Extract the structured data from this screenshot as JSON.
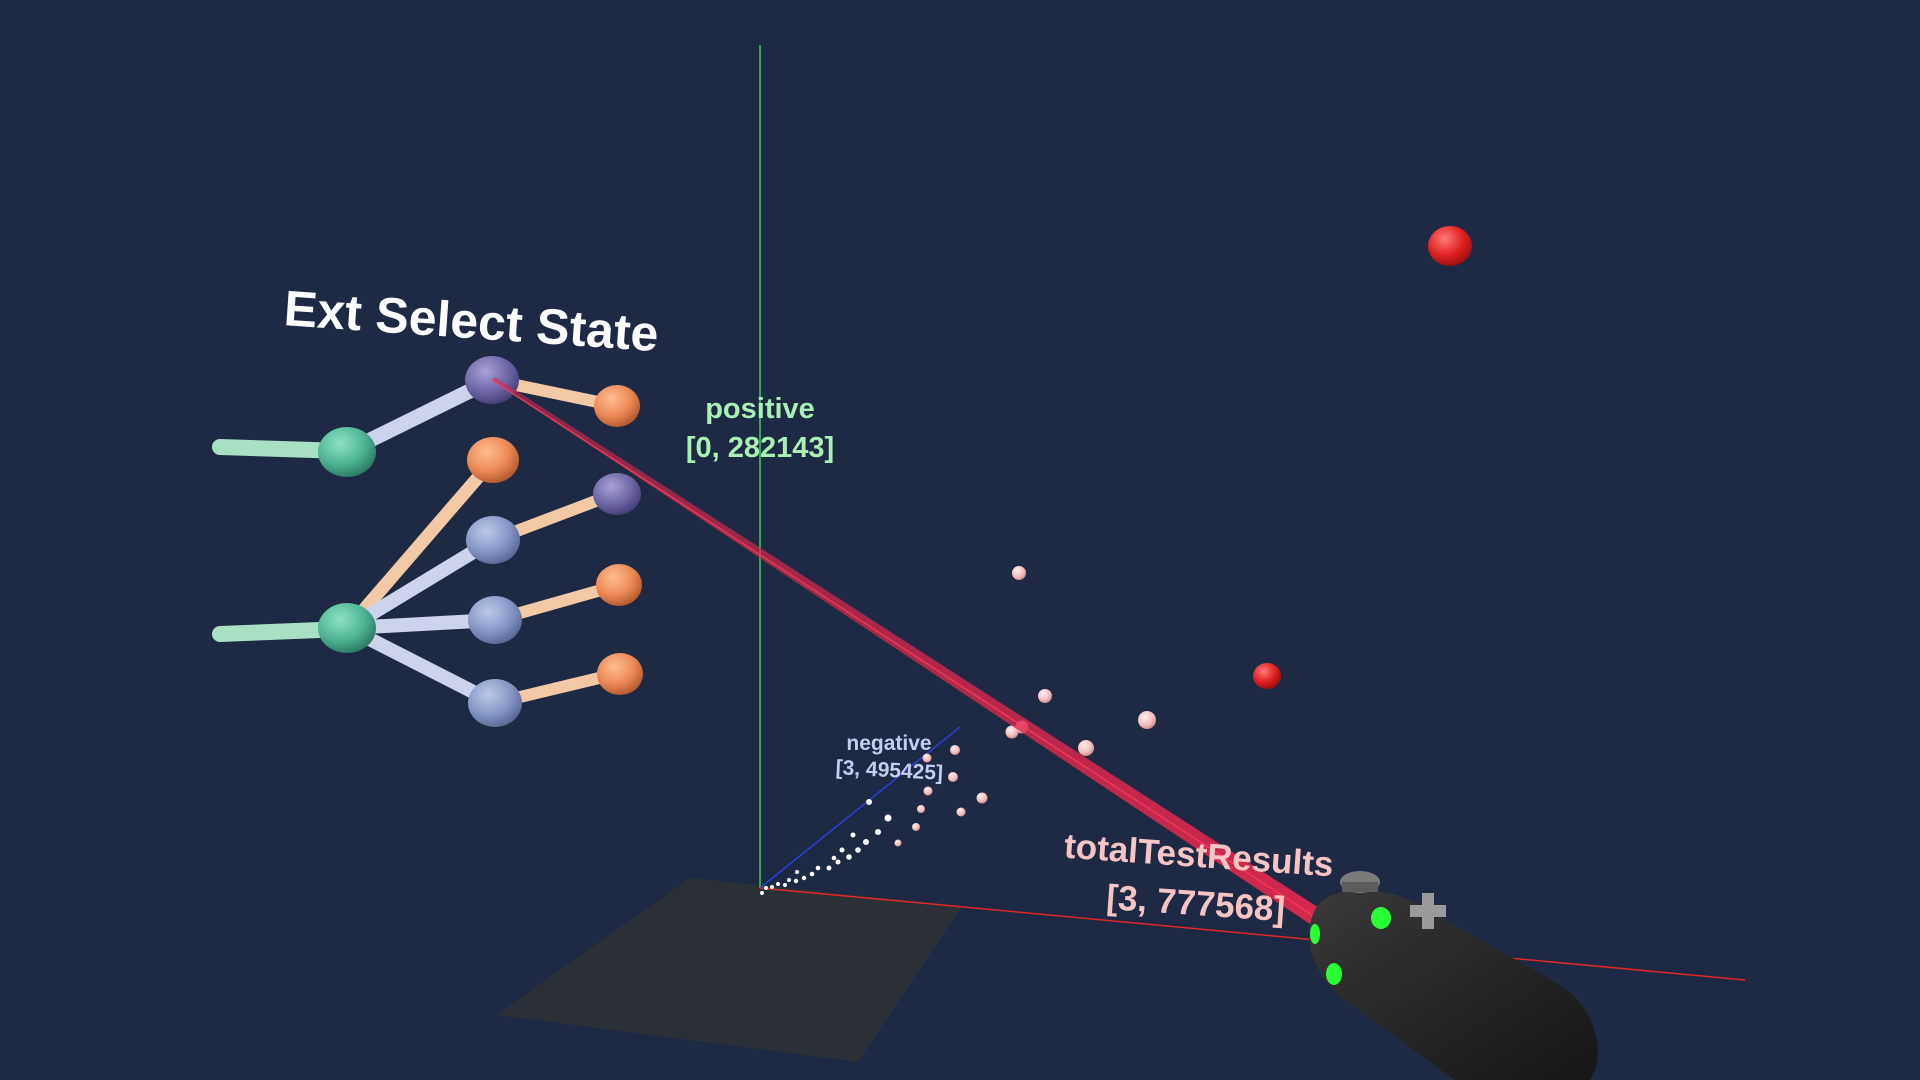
{
  "scene": {
    "background": "#1e2a43",
    "title": "Ext Select State",
    "axes": {
      "y": {
        "name": "positive",
        "range": "[0, 282143]",
        "color": "#2fd35a",
        "label_color": "#a8f0b4"
      },
      "z": {
        "name": "negative",
        "range": "[3, 495425]",
        "color": "#2b3fd8",
        "label_color": "#c4cdf2"
      },
      "x": {
        "name": "totalTestResults",
        "range": "[3, 777568]",
        "color": "#e02828",
        "label_color": "#f7c4c4"
      }
    },
    "laser_color": "#d8264a",
    "controller": {
      "body_color": "#262626",
      "button_color": "#2aff35",
      "icon": "vr-controller-icon"
    },
    "tree_colors": {
      "root": "#4fb595",
      "purple": "#6f67a8",
      "orange": "#ec8956",
      "blue": "#8797c6",
      "edge_peach": "#f3c8a5",
      "edge_lavender": "#cdd3ea",
      "edge_mint": "#a8e0c4"
    },
    "highlight_point_color": "#e82020",
    "data_point_color": "#f2c0c0",
    "floor_color": "#2c3138"
  }
}
